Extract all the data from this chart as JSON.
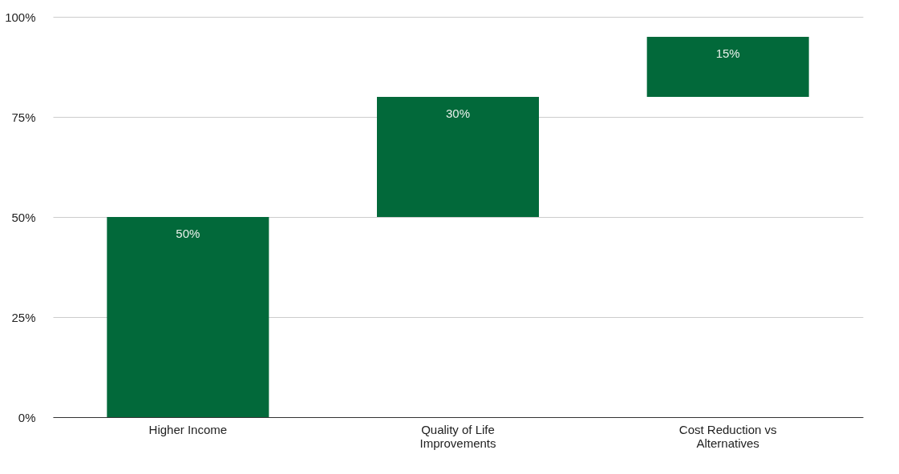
{
  "chart_data": {
    "type": "bar",
    "categories": [
      "Higher Income",
      "Quality of Life Improvements",
      "Cost Reduction vs Alternatives"
    ],
    "values": [
      50,
      30,
      15
    ],
    "base": [
      0,
      50,
      80
    ],
    "value_labels": [
      "50%",
      "30%",
      "15%"
    ],
    "color": "#02693a",
    "ylim": [
      0,
      100
    ],
    "yticks": [
      {
        "value": 0,
        "label": "0%"
      },
      {
        "value": 25,
        "label": "25%"
      },
      {
        "value": 50,
        "label": "50%"
      },
      {
        "value": 75,
        "label": "75%"
      },
      {
        "value": 100,
        "label": "100%"
      }
    ],
    "grid": "y"
  }
}
